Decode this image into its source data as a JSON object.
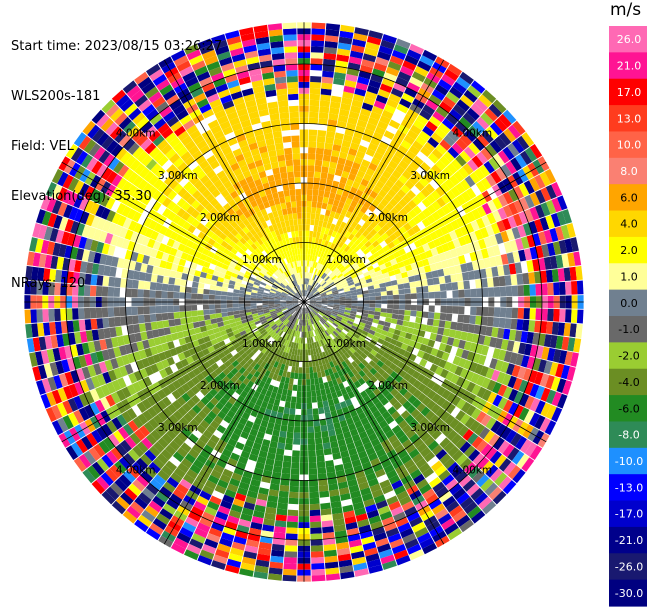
{
  "header": {
    "start_time": "Start time: 2023/08/15 03:26:27",
    "instrument": "WLS200s-181",
    "field": "Field: VEL",
    "elevation": "Elevation(deg): 35.30",
    "nrays": "NRays: 120"
  },
  "colorbar": {
    "title": "m/s",
    "tick_labels": [
      "26.0",
      "21.0",
      "17.0",
      "13.0",
      "10.0",
      "8.0",
      "6.0",
      "4.0",
      "2.0",
      "1.0",
      "0.0",
      "-1.0",
      "-2.0",
      "-4.0",
      "-6.0",
      "-8.0",
      "-10.0",
      "-13.0",
      "-17.0",
      "-21.0",
      "-26.0",
      "-30.0"
    ],
    "segments": [
      {
        "from": 26,
        "to": 30,
        "color": "#ff69b4"
      },
      {
        "from": 21,
        "to": 26,
        "color": "#ff1493"
      },
      {
        "from": 17,
        "to": 21,
        "color": "#ff0000"
      },
      {
        "from": 13,
        "to": 17,
        "color": "#ff3c1e"
      },
      {
        "from": 10,
        "to": 13,
        "color": "#ff6347"
      },
      {
        "from": 8,
        "to": 10,
        "color": "#fa8072"
      },
      {
        "from": 6,
        "to": 8,
        "color": "#ffa500"
      },
      {
        "from": 4,
        "to": 6,
        "color": "#ffd700"
      },
      {
        "from": 2,
        "to": 4,
        "color": "#ffff00"
      },
      {
        "from": 1,
        "to": 2,
        "color": "#ffff99"
      },
      {
        "from": 0,
        "to": 1,
        "color": "#708090"
      },
      {
        "from": -1,
        "to": 0,
        "color": "#696969"
      },
      {
        "from": -2,
        "to": -1,
        "color": "#9acd32"
      },
      {
        "from": -4,
        "to": -2,
        "color": "#6b8e23"
      },
      {
        "from": -6,
        "to": -4,
        "color": "#228b22"
      },
      {
        "from": -8,
        "to": -6,
        "color": "#2e8b57"
      },
      {
        "from": -10,
        "to": -8,
        "color": "#1e90ff"
      },
      {
        "from": -13,
        "to": -10,
        "color": "#0000ff"
      },
      {
        "from": -17,
        "to": -13,
        "color": "#0000cd"
      },
      {
        "from": -21,
        "to": -17,
        "color": "#00008b"
      },
      {
        "from": -26,
        "to": -21,
        "color": "#191970"
      },
      {
        "from": -30,
        "to": -26,
        "color": "#000080"
      }
    ]
  },
  "chart_data": {
    "type": "heatmap",
    "subtype": "ppi-polar",
    "field": "VEL",
    "units": "m/s",
    "range_rings_km": [
      1.0,
      2.0,
      3.0,
      4.0
    ],
    "ring_labels": [
      "1.00km",
      "2.00km",
      "3.00km",
      "4.00km"
    ],
    "max_range_km": 4.7,
    "nrays": 120,
    "radial_lines_deg": [
      0,
      30,
      60,
      90,
      120,
      150,
      180,
      210,
      240,
      270,
      300,
      330
    ],
    "vmin": -30,
    "vmax": 30,
    "pattern": {
      "description": "positive velocities (yellow/orange) toward north, negative (green) toward south, near-zero grey along east-west axis, noisy random values beyond ~3.5 km",
      "peak_positive_mps": 7,
      "peak_negative_mps": -6,
      "peak_azimuth_deg": 0,
      "clean_range_km": 3.3
    }
  }
}
